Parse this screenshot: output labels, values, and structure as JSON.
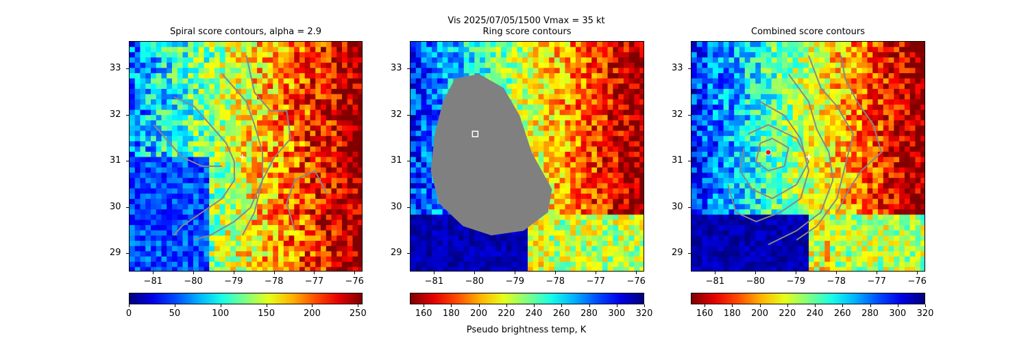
{
  "figure": {
    "suptitle_line1": "Vis  2025/07/05/1500    Vmax = 35 kt",
    "colorbar_label": "Pseudo brightness temp, K"
  },
  "chart_data": [
    {
      "type": "heatmap",
      "title": "Spiral score contours, alpha =  2.9",
      "xlim": [
        -81.6,
        -75.8
      ],
      "ylim": [
        28.6,
        33.6
      ],
      "xticks": [
        -81,
        -80,
        -79,
        -78,
        -77,
        -76
      ],
      "yticks": [
        29,
        30,
        31,
        32,
        33
      ],
      "xtick_labels": [
        "−81",
        "−80",
        "−79",
        "−78",
        "−77",
        "−76"
      ],
      "ytick_labels": [
        "29",
        "30",
        "31",
        "32",
        "33"
      ],
      "colormap": "jet",
      "colorbar": {
        "min": 0,
        "max": 255,
        "ticks": [
          0,
          50,
          100,
          150,
          200,
          250
        ],
        "tick_labels": [
          "0",
          "50",
          "100",
          "150",
          "200",
          "250"
        ],
        "reversed": false
      },
      "markers": [
        {
          "kind": "plus",
          "color": "#ffffff",
          "lon": -78.8,
          "lat": 31.1
        }
      ],
      "contours": [
        {
          "color": "#888888",
          "points": [
            [
              -80.5,
              32.4
            ],
            [
              -80.0,
              32.2
            ],
            [
              -79.6,
              31.8
            ],
            [
              -79.2,
              31.4
            ],
            [
              -79.0,
              31.0
            ],
            [
              -79.0,
              30.6
            ],
            [
              -79.3,
              30.2
            ],
            [
              -79.8,
              29.9
            ],
            [
              -80.3,
              29.6
            ],
            [
              -80.5,
              29.4
            ]
          ]
        },
        {
          "color": "#888888",
          "points": [
            [
              -79.3,
              32.9
            ],
            [
              -78.7,
              32.3
            ],
            [
              -78.5,
              31.8
            ],
            [
              -78.3,
              31.2
            ],
            [
              -78.3,
              30.6
            ],
            [
              -78.6,
              30.0
            ],
            [
              -79.0,
              29.7
            ],
            [
              -79.6,
              29.4
            ],
            [
              -80.0,
              29.3
            ]
          ]
        },
        {
          "color": "#888888",
          "points": [
            [
              -78.7,
              33.3
            ],
            [
              -78.5,
              32.5
            ],
            [
              -78.1,
              32.1
            ],
            [
              -77.7,
              32.1
            ],
            [
              -77.6,
              31.5
            ],
            [
              -78.0,
              31.1
            ],
            [
              -78.3,
              30.6
            ],
            [
              -78.5,
              29.9
            ],
            [
              -78.8,
              29.4
            ]
          ]
        },
        {
          "color": "#888888",
          "points": [
            [
              -81.0,
              31.8
            ],
            [
              -80.6,
              31.4
            ],
            [
              -80.3,
              31.1
            ],
            [
              -79.8,
              30.9
            ],
            [
              -79.3,
              30.9
            ]
          ]
        },
        {
          "color": "#888888",
          "points": [
            [
              -77.5,
              29.5
            ],
            [
              -77.7,
              30.1
            ],
            [
              -77.5,
              30.6
            ],
            [
              -77.0,
              30.8
            ],
            [
              -76.7,
              30.3
            ]
          ]
        }
      ]
    },
    {
      "type": "heatmap",
      "title": "Ring score contours",
      "xlim": [
        -81.6,
        -75.8
      ],
      "ylim": [
        28.6,
        33.6
      ],
      "xticks": [
        -81,
        -80,
        -79,
        -78,
        -77,
        -76
      ],
      "yticks": [
        29,
        30,
        31,
        32,
        33
      ],
      "xtick_labels": [
        "−81",
        "−80",
        "−79",
        "−78",
        "−77",
        "−76"
      ],
      "ytick_labels": [
        "29",
        "30",
        "31",
        "32",
        "33"
      ],
      "colormap": "jet_r",
      "colorbar": {
        "min": 150,
        "max": 320,
        "ticks": [
          160,
          180,
          200,
          220,
          240,
          260,
          280,
          300,
          320
        ],
        "tick_labels": [
          "160",
          "180",
          "200",
          "220",
          "240",
          "260",
          "280",
          "300",
          "320"
        ],
        "reversed": true
      },
      "markers": [
        {
          "kind": "square",
          "color": "#ffffff",
          "lon": -80.0,
          "lat": 31.6
        }
      ],
      "masked_region": {
        "color": "#808080",
        "points": [
          [
            -80.5,
            32.8
          ],
          [
            -79.9,
            32.9
          ],
          [
            -79.3,
            32.6
          ],
          [
            -78.9,
            32.0
          ],
          [
            -78.6,
            31.2
          ],
          [
            -78.1,
            30.4
          ],
          [
            -78.2,
            29.9
          ],
          [
            -78.8,
            29.5
          ],
          [
            -79.6,
            29.4
          ],
          [
            -80.3,
            29.6
          ],
          [
            -80.9,
            30.1
          ],
          [
            -81.1,
            30.8
          ],
          [
            -81.0,
            31.6
          ],
          [
            -80.8,
            32.3
          ]
        ]
      },
      "contours": []
    },
    {
      "type": "heatmap",
      "title": "Combined score contours",
      "xlim": [
        -81.6,
        -75.8
      ],
      "ylim": [
        28.6,
        33.6
      ],
      "xticks": [
        -81,
        -80,
        -79,
        -78,
        -77,
        -76
      ],
      "yticks": [
        29,
        30,
        31,
        32,
        33
      ],
      "xtick_labels": [
        "−81",
        "−80",
        "−79",
        "−78",
        "−77",
        "−76"
      ],
      "ytick_labels": [
        "29",
        "30",
        "31",
        "32",
        "33"
      ],
      "colormap": "jet_r",
      "colorbar": {
        "min": 150,
        "max": 320,
        "ticks": [
          160,
          180,
          200,
          220,
          240,
          260,
          280,
          300,
          320
        ],
        "tick_labels": [
          "160",
          "180",
          "200",
          "220",
          "240",
          "260",
          "280",
          "300",
          "320"
        ],
        "reversed": true
      },
      "markers": [
        {
          "kind": "circle",
          "color": "#dd2222",
          "edge": "#ffffff",
          "lon": -79.7,
          "lat": 31.2
        },
        {
          "kind": "plus",
          "color": "#ffffff",
          "lon": -78.7,
          "lat": 31.1
        }
      ],
      "contours": [
        {
          "color": "#888888",
          "points": [
            [
              -79.9,
              31.4
            ],
            [
              -79.6,
              31.5
            ],
            [
              -79.2,
              31.3
            ],
            [
              -79.3,
              30.9
            ],
            [
              -79.7,
              30.8
            ],
            [
              -80.0,
              31.0
            ],
            [
              -79.9,
              31.4
            ]
          ]
        },
        {
          "color": "#888888",
          "points": [
            [
              -80.2,
              31.6
            ],
            [
              -79.7,
              31.8
            ],
            [
              -79.0,
              31.5
            ],
            [
              -78.7,
              31.0
            ],
            [
              -79.0,
              30.5
            ],
            [
              -79.6,
              30.2
            ],
            [
              -80.1,
              30.4
            ],
            [
              -80.4,
              30.8
            ],
            [
              -80.3,
              31.3
            ]
          ]
        },
        {
          "color": "#888888",
          "points": [
            [
              -79.9,
              32.3
            ],
            [
              -79.3,
              32.0
            ],
            [
              -78.9,
              31.5
            ],
            [
              -78.7,
              30.8
            ],
            [
              -78.9,
              30.2
            ],
            [
              -79.4,
              29.9
            ],
            [
              -80.0,
              29.7
            ],
            [
              -80.5,
              29.9
            ],
            [
              -80.7,
              30.5
            ]
          ]
        },
        {
          "color": "#888888",
          "points": [
            [
              -79.2,
              32.9
            ],
            [
              -78.7,
              32.3
            ],
            [
              -78.5,
              31.7
            ],
            [
              -78.2,
              31.2
            ],
            [
              -78.1,
              30.6
            ],
            [
              -78.4,
              29.9
            ],
            [
              -79.0,
              29.5
            ],
            [
              -79.7,
              29.2
            ]
          ]
        },
        {
          "color": "#888888",
          "points": [
            [
              -78.7,
              33.3
            ],
            [
              -78.4,
              32.6
            ],
            [
              -78.0,
              32.2
            ],
            [
              -77.6,
              31.6
            ],
            [
              -77.8,
              30.9
            ],
            [
              -78.0,
              30.2
            ],
            [
              -78.5,
              29.6
            ],
            [
              -79.0,
              29.3
            ]
          ]
        },
        {
          "color": "#888888",
          "points": [
            [
              -77.9,
              33.3
            ],
            [
              -77.8,
              32.8
            ],
            [
              -77.5,
              32.3
            ],
            [
              -77.1,
              31.8
            ],
            [
              -76.9,
              31.2
            ],
            [
              -77.4,
              30.8
            ],
            [
              -77.7,
              30.4
            ],
            [
              -78.0,
              29.9
            ]
          ]
        }
      ]
    }
  ]
}
